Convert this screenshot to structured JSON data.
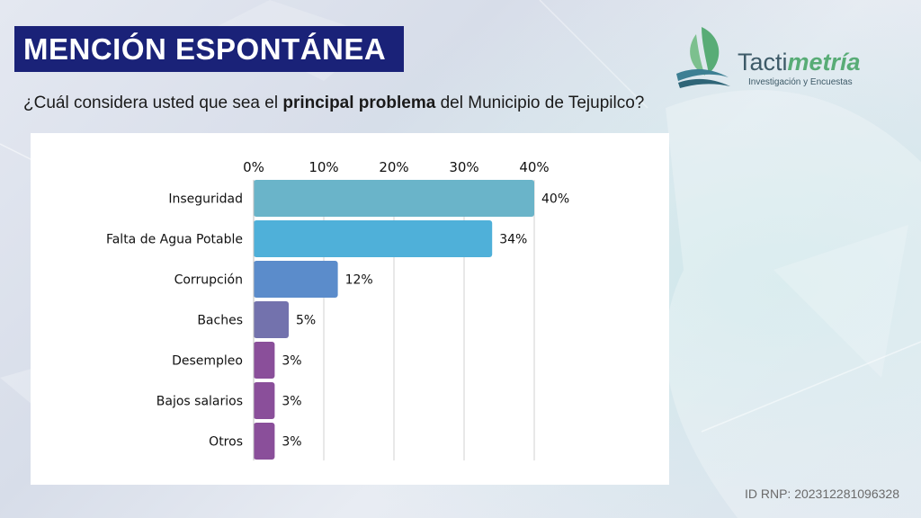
{
  "header": {
    "title": "MENCIÓN ESPONTÁNEA",
    "question_pre": "¿Cuál considera usted que sea el ",
    "question_bold": "principal problema",
    "question_post": " del Municipio de Tejupilco?"
  },
  "brand": {
    "name_plain": "Tacti",
    "name_accent": "metría",
    "tagline": "Investigación y Encuestas",
    "colors": {
      "primary": "#3d5a68",
      "accent": "#58ac76",
      "banner": "#1a2278"
    }
  },
  "chart_data": {
    "type": "bar",
    "orientation": "horizontal",
    "categories": [
      "Inseguridad",
      "Falta de Agua Potable",
      "Corrupción",
      "Baches",
      "Desempleo",
      "Bajos salarios",
      "Otros"
    ],
    "values": [
      40,
      34,
      12,
      5,
      3,
      3,
      3
    ],
    "value_labels": [
      "40%",
      "34%",
      "12%",
      "5%",
      "3%",
      "3%",
      "3%"
    ],
    "bar_colors": [
      "#6ab4c9",
      "#4fb0d9",
      "#5b8ccb",
      "#7372ad",
      "#8a4f9a",
      "#8a4f9a",
      "#8a4f9a"
    ],
    "xlim": [
      0,
      40
    ],
    "ticks": [
      0,
      10,
      20,
      30,
      40
    ],
    "tick_labels": [
      "0%",
      "10%",
      "20%",
      "30%",
      "40%"
    ],
    "axis_position": "top",
    "grid": true,
    "legend": "none"
  },
  "footer": {
    "id_label": "ID RNP: 202312281096328"
  }
}
